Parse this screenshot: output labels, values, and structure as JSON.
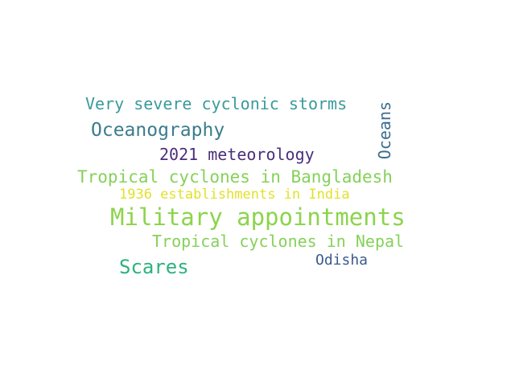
{
  "word_cloud": {
    "words": {
      "very_severe": {
        "text": "Very severe cyclonic storms",
        "color": "#3a9a99"
      },
      "oceanography": {
        "text": "Oceanography",
        "color": "#3a7d8c"
      },
      "oceans": {
        "text": "Oceans",
        "color": "#3b6e8f",
        "orientation": "vertical"
      },
      "meteorology": {
        "text": "2021 meteorology",
        "color": "#4b2f7a"
      },
      "bangladesh": {
        "text": "Tropical cyclones in Bangladesh",
        "color": "#86d15a"
      },
      "india": {
        "text": "1936 establishments in India",
        "color": "#e2e12a"
      },
      "military": {
        "text": "Military appointments",
        "color": "#8cd44c"
      },
      "nepal": {
        "text": "Tropical cyclones in Nepal",
        "color": "#86d15a"
      },
      "scares": {
        "text": "Scares",
        "color": "#2eb27e"
      },
      "odisha": {
        "text": "Odisha",
        "color": "#3b5a8c"
      }
    }
  }
}
